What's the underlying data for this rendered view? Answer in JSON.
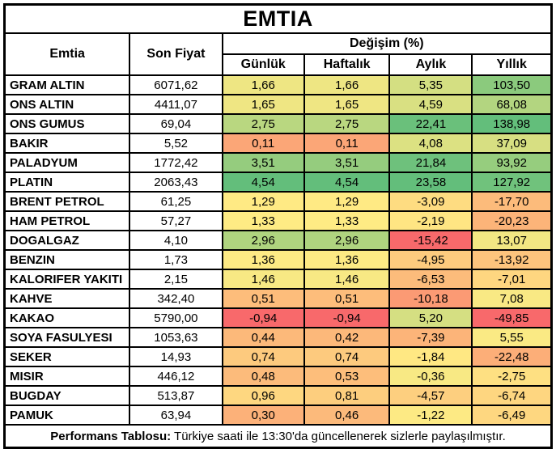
{
  "title": "EMTIA",
  "header": {
    "commodity": "Emtia",
    "last_price": "Son Fiyat",
    "change_group": "Değişim (%)",
    "periods": [
      "Günlük",
      "Haftalık",
      "Aylık",
      "Yıllık"
    ]
  },
  "rows": [
    {
      "name": "GRAM ALTIN",
      "price": "6071,62",
      "changes": [
        "1,66",
        "1,66",
        "5,35",
        "103,50"
      ]
    },
    {
      "name": "ONS ALTIN",
      "price": "4411,07",
      "changes": [
        "1,65",
        "1,65",
        "4,59",
        "68,08"
      ]
    },
    {
      "name": "ONS GUMUS",
      "price": "69,04",
      "changes": [
        "2,75",
        "2,75",
        "22,41",
        "138,98"
      ]
    },
    {
      "name": "BAKIR",
      "price": "5,52",
      "changes": [
        "0,11",
        "0,11",
        "4,08",
        "37,09"
      ]
    },
    {
      "name": "PALADYUM",
      "price": "1772,42",
      "changes": [
        "3,51",
        "3,51",
        "21,84",
        "93,92"
      ]
    },
    {
      "name": "PLATIN",
      "price": "2063,43",
      "changes": [
        "4,54",
        "4,54",
        "23,58",
        "127,92"
      ]
    },
    {
      "name": "BRENT PETROL",
      "price": "61,25",
      "changes": [
        "1,29",
        "1,29",
        "-3,09",
        "-17,70"
      ]
    },
    {
      "name": "HAM PETROL",
      "price": "57,27",
      "changes": [
        "1,33",
        "1,33",
        "-2,19",
        "-20,23"
      ]
    },
    {
      "name": "DOGALGAZ",
      "price": "4,10",
      "changes": [
        "2,96",
        "2,96",
        "-15,42",
        "13,07"
      ]
    },
    {
      "name": "BENZIN",
      "price": "1,73",
      "changes": [
        "1,36",
        "1,36",
        "-4,95",
        "-13,92"
      ]
    },
    {
      "name": "KALORIFER YAKITI",
      "price": "2,15",
      "changes": [
        "1,46",
        "1,46",
        "-6,53",
        "-7,01"
      ]
    },
    {
      "name": "KAHVE",
      "price": "342,40",
      "changes": [
        "0,51",
        "0,51",
        "-10,18",
        "7,08"
      ]
    },
    {
      "name": "KAKAO",
      "price": "5790,00",
      "changes": [
        "-0,94",
        "-0,94",
        "5,20",
        "-49,85"
      ]
    },
    {
      "name": "SOYA FASULYESI",
      "price": "1053,63",
      "changes": [
        "0,44",
        "0,42",
        "-7,39",
        "5,55"
      ]
    },
    {
      "name": "SEKER",
      "price": "14,93",
      "changes": [
        "0,74",
        "0,74",
        "-1,84",
        "-22,48"
      ]
    },
    {
      "name": "MISIR",
      "price": "446,12",
      "changes": [
        "0,48",
        "0,53",
        "-0,36",
        "-2,75"
      ]
    },
    {
      "name": "BUGDAY",
      "price": "513,87",
      "changes": [
        "0,96",
        "0,81",
        "-4,57",
        "-6,74"
      ]
    },
    {
      "name": "PAMUK",
      "price": "63,94",
      "changes": [
        "0,30",
        "0,46",
        "-1,22",
        "-6,49"
      ]
    }
  ],
  "footer": {
    "label": "Performans Tablosu:",
    "text": "Türkiye saati ile 13:30'da güncellenerek sizlerle paylaşılmıştır."
  },
  "colors": {
    "scale_low": "#F8696B",
    "scale_mid": "#FFEB84",
    "scale_high": "#63BE7B",
    "border": "#000000",
    "background": "#FFFFFF",
    "text": "#000000"
  },
  "chart_data": {
    "type": "table",
    "title": "EMTIA",
    "columns": [
      "Emtia",
      "Son Fiyat",
      "Günlük (%)",
      "Haftalık (%)",
      "Aylık (%)",
      "Yıllık (%)"
    ],
    "rows": [
      [
        "GRAM ALTIN",
        6071.62,
        1.66,
        1.66,
        5.35,
        103.5
      ],
      [
        "ONS ALTIN",
        4411.07,
        1.65,
        1.65,
        4.59,
        68.08
      ],
      [
        "ONS GUMUS",
        69.04,
        2.75,
        2.75,
        22.41,
        138.98
      ],
      [
        "BAKIR",
        5.52,
        0.11,
        0.11,
        4.08,
        37.09
      ],
      [
        "PALADYUM",
        1772.42,
        3.51,
        3.51,
        21.84,
        93.92
      ],
      [
        "PLATIN",
        2063.43,
        4.54,
        4.54,
        23.58,
        127.92
      ],
      [
        "BRENT PETROL",
        61.25,
        1.29,
        1.29,
        -3.09,
        -17.7
      ],
      [
        "HAM PETROL",
        57.27,
        1.33,
        1.33,
        -2.19,
        -20.23
      ],
      [
        "DOGALGAZ",
        4.1,
        2.96,
        2.96,
        -15.42,
        13.07
      ],
      [
        "BENZIN",
        1.73,
        1.36,
        1.36,
        -4.95,
        -13.92
      ],
      [
        "KALORIFER YAKITI",
        2.15,
        1.46,
        1.46,
        -6.53,
        -7.01
      ],
      [
        "KAHVE",
        342.4,
        0.51,
        0.51,
        -10.18,
        7.08
      ],
      [
        "KAKAO",
        5790.0,
        -0.94,
        -0.94,
        5.2,
        -49.85
      ],
      [
        "SOYA FASULYESI",
        1053.63,
        0.44,
        0.42,
        -7.39,
        5.55
      ],
      [
        "SEKER",
        14.93,
        0.74,
        0.74,
        -1.84,
        -22.48
      ],
      [
        "MISIR",
        446.12,
        0.48,
        0.53,
        -0.36,
        -2.75
      ],
      [
        "BUGDAY",
        513.87,
        0.96,
        0.81,
        -4.57,
        -6.74
      ],
      [
        "PAMUK",
        63.94,
        0.3,
        0.46,
        -1.22,
        -6.49
      ]
    ],
    "note": "Performans Tablosu: Türkiye saati ile 13:30'da güncellenerek sizlerle paylaşılmıştır.",
    "heatmap": {
      "applies_to": "change columns only, scaled per column",
      "low_color": "#F8696B",
      "mid_color": "#FFEB84",
      "high_color": "#63BE7B",
      "midpoint": "column median"
    }
  }
}
